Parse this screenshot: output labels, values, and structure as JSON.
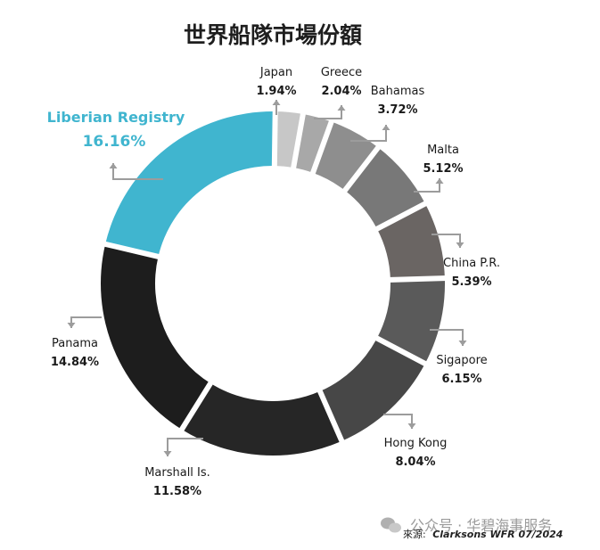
{
  "chart_data": {
    "type": "pie",
    "variant": "donut",
    "title": "世界船隊市場份額",
    "slices": [
      {
        "name": "Japan",
        "value": 1.94,
        "label": "1.94%",
        "color": "#c7c7c7"
      },
      {
        "name": "Greece",
        "value": 2.04,
        "label": "2.04%",
        "color": "#a8a8a8"
      },
      {
        "name": "Bahamas",
        "value": 3.72,
        "label": "3.72%",
        "color": "#8e8e8e"
      },
      {
        "name": "Malta",
        "value": 5.12,
        "label": "5.12%",
        "color": "#787878"
      },
      {
        "name": "China P.R.",
        "value": 5.39,
        "label": "5.39%",
        "color": "#6a6563"
      },
      {
        "name": "Sigapore",
        "value": 6.15,
        "label": "6.15%",
        "color": "#5a5a5a"
      },
      {
        "name": "Hong Kong",
        "value": 8.04,
        "label": "8.04%",
        "color": "#474747"
      },
      {
        "name": "Marshall Is.",
        "value": 11.58,
        "label": "11.58%",
        "color": "#262626"
      },
      {
        "name": "Panama",
        "value": 14.84,
        "label": "14.84%",
        "color": "#1d1d1d"
      },
      {
        "name": "Liberian Registry",
        "value": 16.16,
        "label": "16.16%",
        "color": "#40b5cf",
        "highlight": true
      }
    ]
  },
  "source": {
    "prefix": "來源:",
    "text": "Clarksons WFR 07/2024"
  },
  "watermark": {
    "text": "公众号 · 华碧海事服务"
  }
}
